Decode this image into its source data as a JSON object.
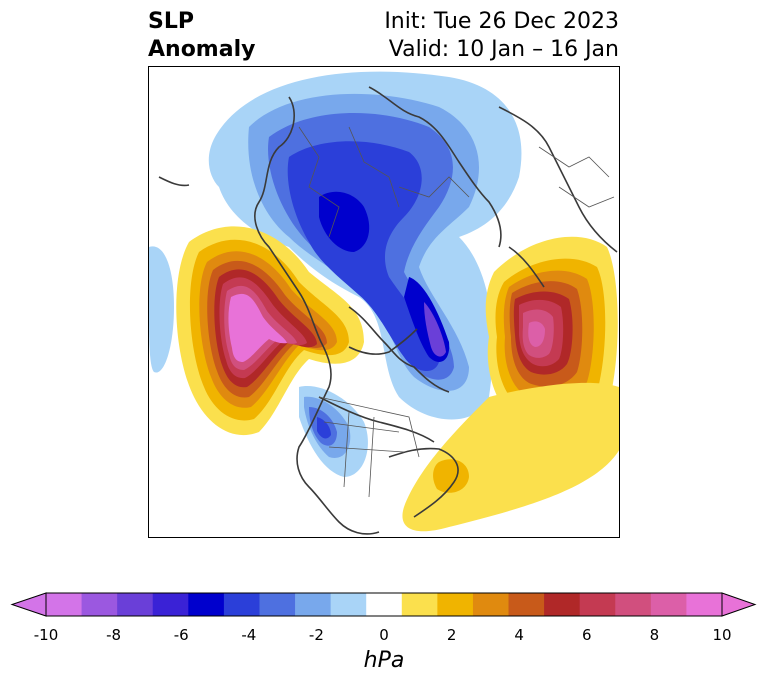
{
  "title": {
    "left_line1": "SLP",
    "left_line2": "Anomaly",
    "right_line1": "Init: Tue 26 Dec 2023",
    "right_line2": "Valid: 10 Jan – 16 Jan"
  },
  "colorbar": {
    "unit": "hPa",
    "ticks": [
      "-10",
      "-8",
      "-6",
      "-4",
      "-2",
      "0",
      "2",
      "4",
      "6",
      "8",
      "10"
    ],
    "levels": [
      -10,
      -9,
      -8,
      -7,
      -6,
      -5,
      -4,
      -3,
      -2,
      -1,
      1,
      2,
      3,
      4,
      5,
      6,
      7,
      8,
      9,
      10
    ],
    "colors": [
      "#d374e8",
      "#9b58e0",
      "#6a3fd8",
      "#3a22d6",
      "#0000cd",
      "#2b3fd9",
      "#4e70e0",
      "#78a8ec",
      "#a9d4f7",
      "#ffffff",
      "#fbe04d",
      "#f0b400",
      "#e08a0f",
      "#c85a1a",
      "#b02828",
      "#c43a52",
      "#d14f7e",
      "#dc5fa8",
      "#e872d8"
    ],
    "extend": "both"
  },
  "map": {
    "projection": "north-polar-stereographic",
    "field": "sea level pressure anomaly",
    "features": [
      {
        "name": "negative-center-siberia",
        "value": -6
      },
      {
        "name": "negative-center-greenland-atlantic",
        "value": -7
      },
      {
        "name": "negative-center-western-us",
        "value": -5
      },
      {
        "name": "positive-center-north-pacific",
        "value": 10
      },
      {
        "name": "positive-center-western-europe",
        "value": 9
      },
      {
        "name": "positive-center-subtropical-atlantic",
        "value": 3
      }
    ]
  }
}
